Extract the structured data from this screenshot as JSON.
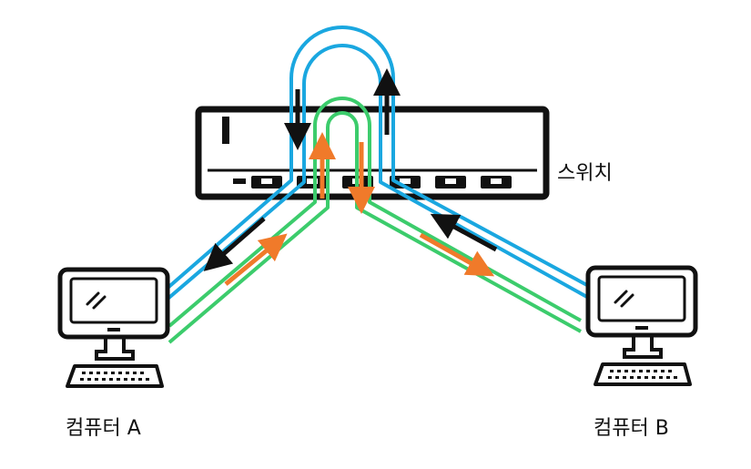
{
  "labels": {
    "switch": "스위치",
    "computer_a": "컴퓨터 A",
    "computer_b": "컴퓨터 B"
  },
  "colors": {
    "blue_path": "#1aa7e0",
    "green_path": "#3ccc6c",
    "black_arrow": "#111111",
    "orange_arrow": "#f07a2a",
    "device_outline": "#111111"
  },
  "icons": [
    "switch-icon",
    "monitor-icon",
    "keyboard-icon"
  ]
}
